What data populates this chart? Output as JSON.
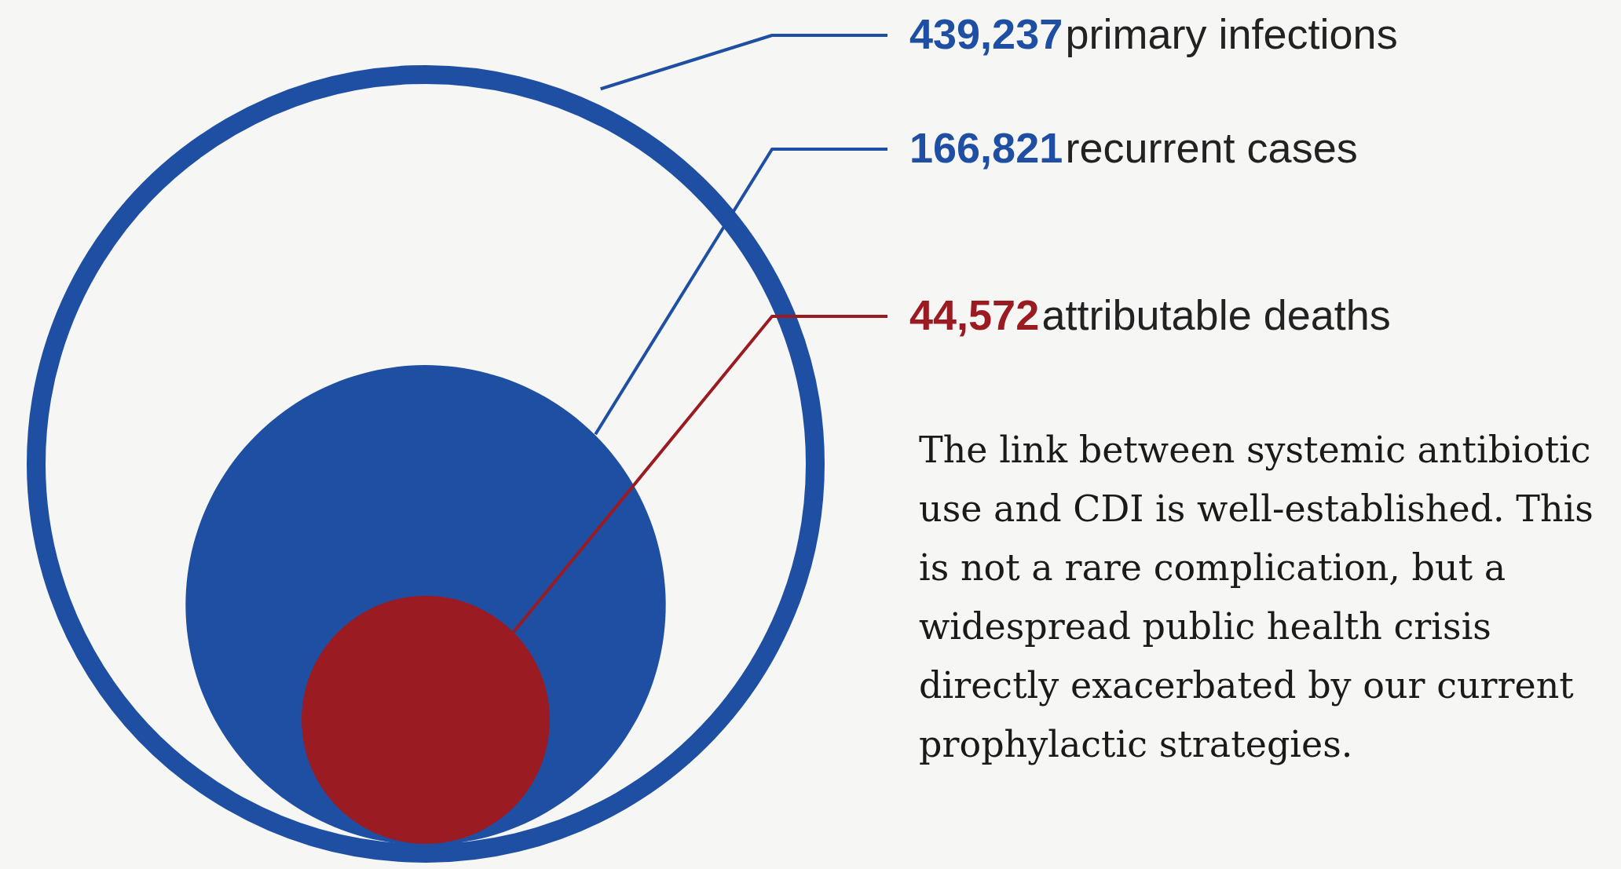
{
  "chart_data": {
    "type": "other",
    "categories": [
      "primary infections",
      "recurrent cases",
      "attributable deaths"
    ],
    "values": [
      439237,
      166821,
      44572
    ],
    "value_labels": [
      "439,237",
      "166,821",
      "44,572"
    ],
    "colors": [
      "#1f4fa3",
      "#1f4fa3",
      "#9b1b22"
    ],
    "annotations": [
      "The link between systemic antibiotic use and CDI is well-established. This is not a rare complication, but a widespread public health crisis directly exacerbated by our current prophylactic strategies."
    ]
  }
}
